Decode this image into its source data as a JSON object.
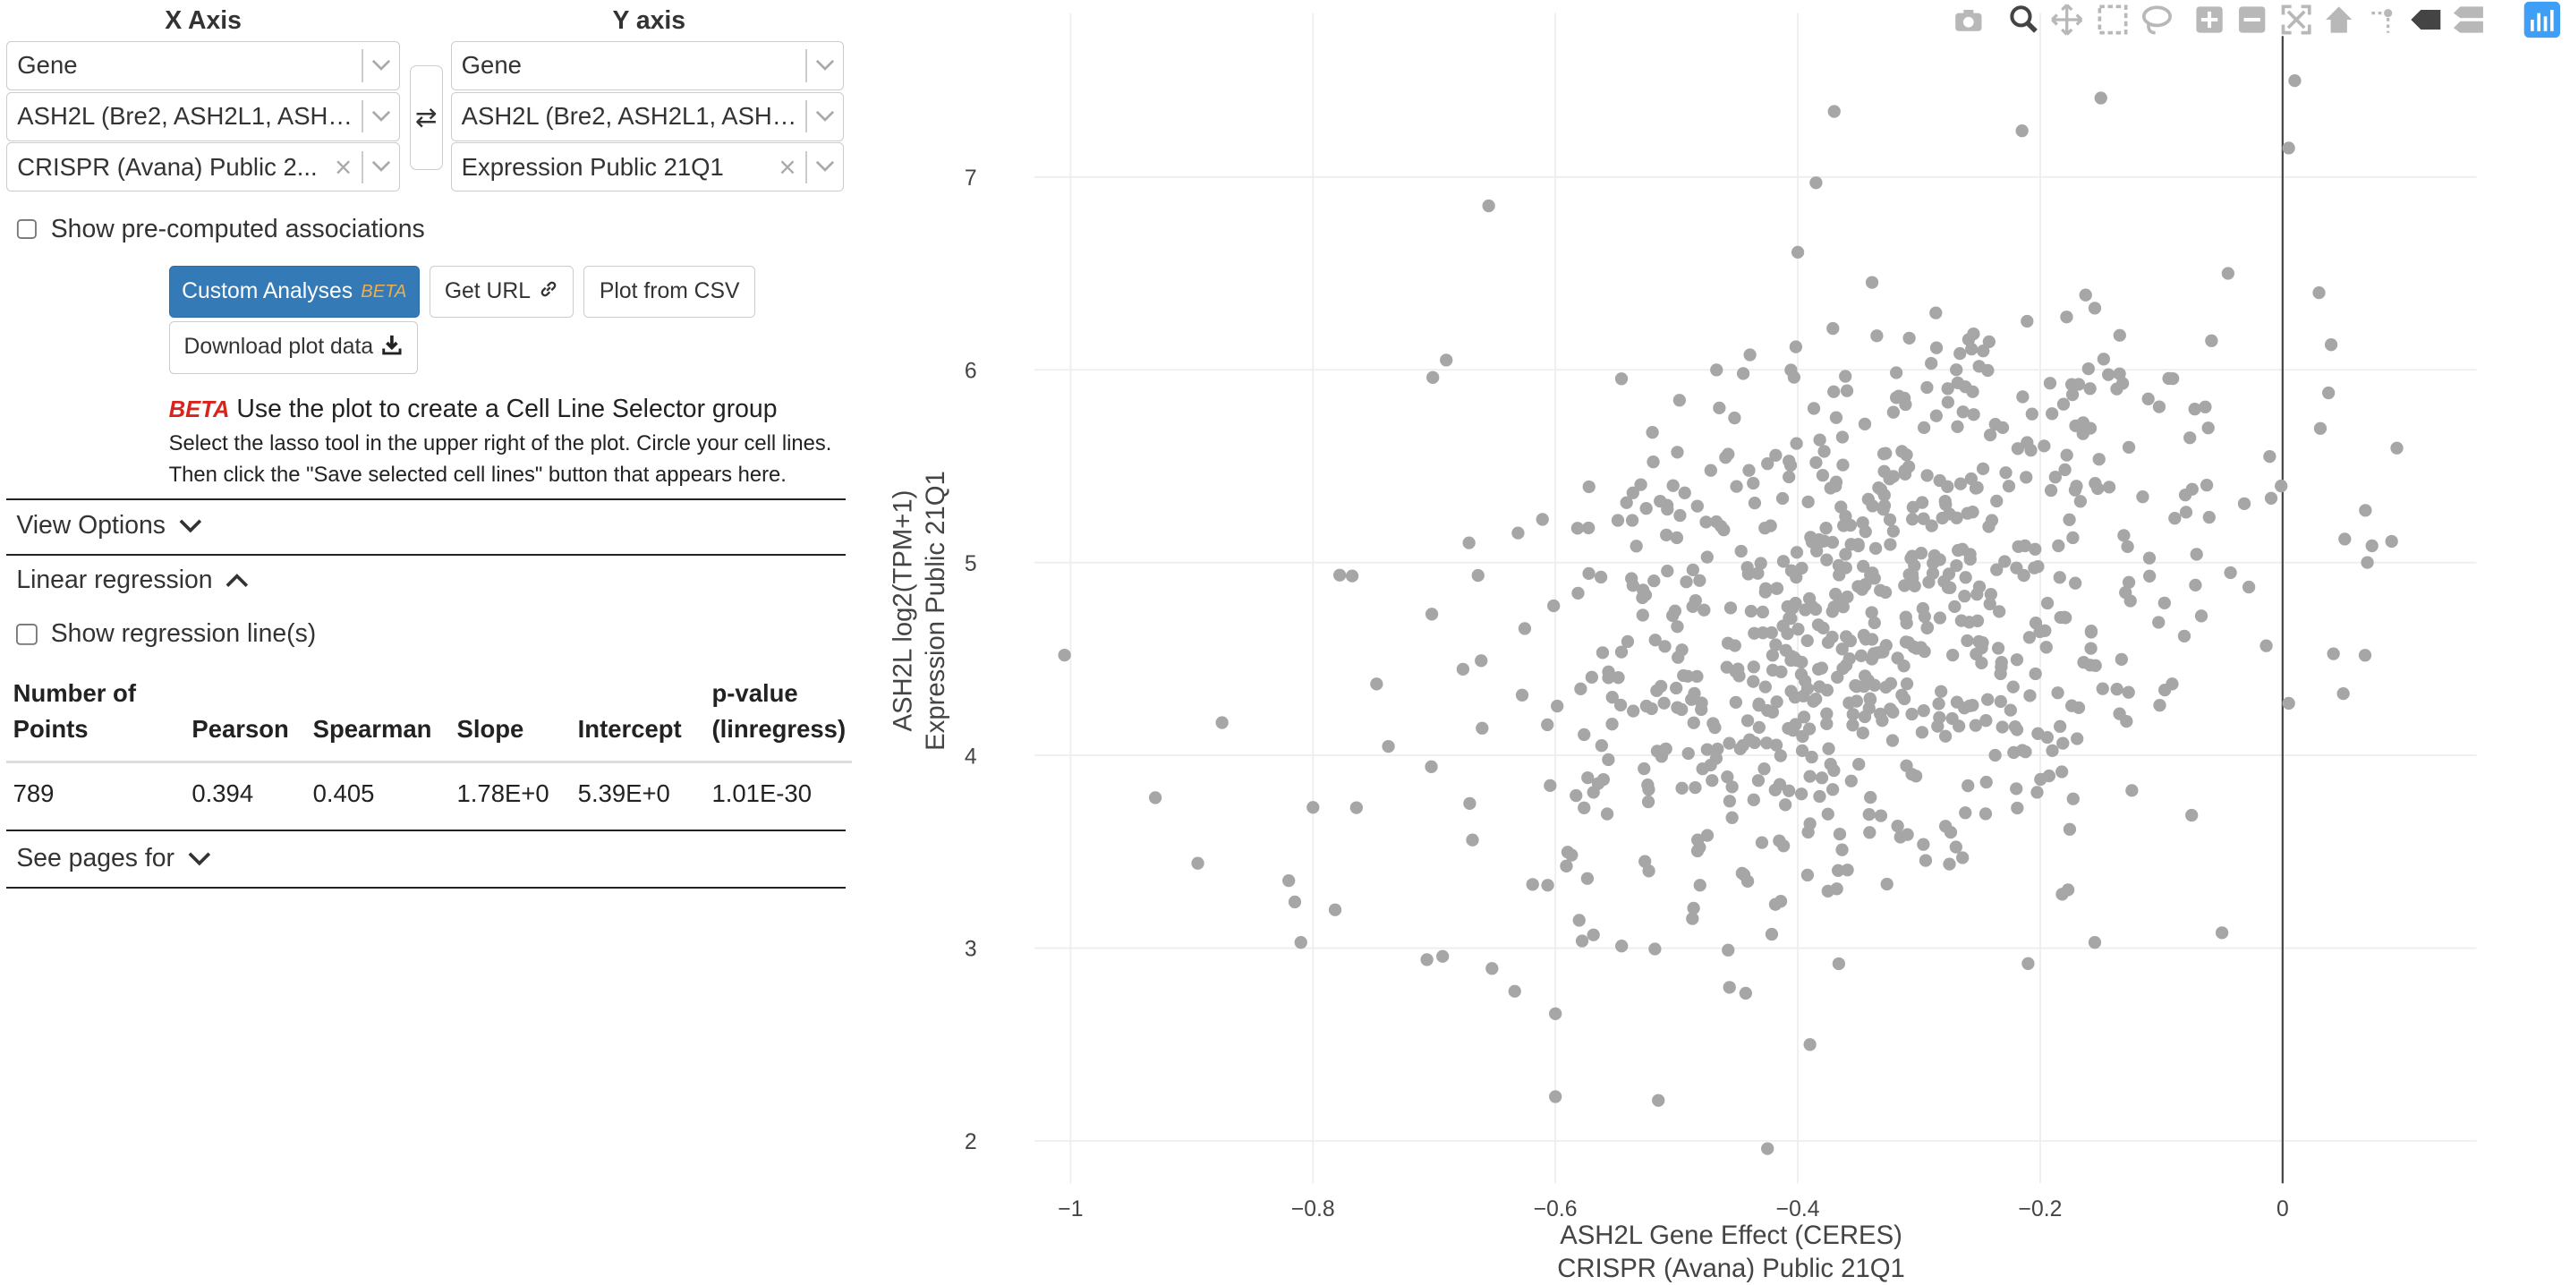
{
  "x_axis": {
    "title": "X Axis",
    "type_select": "Gene",
    "gene_select": "ASH2L (Bre2, ASH2L1, ASH2...",
    "dataset_select": "CRISPR (Avana) Public 2..."
  },
  "y_axis": {
    "title": "Y axis",
    "type_select": "Gene",
    "gene_select": "ASH2L (Bre2, ASH2L1, ASH2...",
    "dataset_select": "Expression Public 21Q1"
  },
  "swap_icon": "⇄",
  "options": {
    "precomputed_label": "Show pre-computed associations",
    "precomputed_checked": false
  },
  "buttons": {
    "custom_analyses": "Custom Analyses",
    "custom_analyses_badge": "BETA",
    "get_url": "Get URL",
    "plot_from_csv": "Plot from CSV",
    "download_plot_data": "Download plot data"
  },
  "selector_info": {
    "badge": "BETA",
    "heading": "Use the plot to create a Cell Line Selector group",
    "line1": "Select the lasso tool in the upper right of the plot. Circle your cell lines.",
    "line2": "Then click the \"Save selected cell lines\" button that appears here."
  },
  "sections": {
    "view_options": "View Options",
    "linear_regression": "Linear regression",
    "show_regression_label": "Show regression line(s)",
    "see_pages_for": "See pages for"
  },
  "stats_table": {
    "headers": {
      "points_line1": "Number of",
      "points_line2": "Points",
      "pearson": "Pearson",
      "spearman": "Spearman",
      "slope": "Slope",
      "intercept": "Intercept",
      "pvalue_line1": "p-value",
      "pvalue_line2": "(linregress)"
    },
    "row": {
      "points": "789",
      "pearson": "0.394",
      "spearman": "0.405",
      "slope": "1.78E+0",
      "intercept": "5.39E+0",
      "pvalue": "1.01E-30"
    }
  },
  "modebar_icons": [
    "camera-icon",
    "zoom-icon",
    "pan-icon",
    "box-select-icon",
    "lasso-icon",
    "zoom-in-icon",
    "zoom-out-icon",
    "autoscale-icon",
    "reset-axes-icon",
    "spike-lines-icon",
    "hover-closest-icon",
    "hover-compare-icon",
    "plotly-logo-icon"
  ],
  "colors": {
    "primary_button": "#337ab7",
    "beta_badge": "#f0ad4e",
    "beta_red": "#d9231d",
    "point": "#a6a6a6"
  },
  "chart_data": {
    "type": "scatter",
    "xlabel_line1": "ASH2L Gene Effect (CERES)",
    "xlabel_line2": "CRISPR (Avana) Public 21Q1",
    "ylabel_line1": "ASH2L log2(TPM+1)",
    "ylabel_line2": "Expression Public 21Q1",
    "xlim": [
      -1.03,
      0.16
    ],
    "ylim": [
      1.78,
      7.85
    ],
    "xticks": [
      -1,
      -0.8,
      -0.6,
      -0.4,
      -0.2,
      0
    ],
    "xtick_labels": [
      "−1",
      "−0.8",
      "−0.6",
      "−0.4",
      "−0.2",
      "0"
    ],
    "yticks": [
      2,
      3,
      4,
      5,
      6,
      7
    ],
    "ytick_labels": [
      "2",
      "3",
      "4",
      "5",
      "6",
      "7"
    ],
    "grid": true,
    "zero_line_x": 0,
    "n_points": 789,
    "x_mean": -0.35,
    "x_sd": 0.14,
    "y_mean": 4.7,
    "y_sd": 0.8,
    "pearson": 0.394,
    "outlier_points": [
      {
        "x": -1.005,
        "y": 4.52
      },
      {
        "x": -0.93,
        "y": 3.78
      },
      {
        "x": -0.895,
        "y": 3.44
      },
      {
        "x": -0.875,
        "y": 4.17
      },
      {
        "x": -0.82,
        "y": 3.35
      },
      {
        "x": -0.815,
        "y": 3.24
      },
      {
        "x": -0.8,
        "y": 3.73
      },
      {
        "x": -0.81,
        "y": 3.03
      },
      {
        "x": -0.655,
        "y": 6.85
      },
      {
        "x": -0.69,
        "y": 6.05
      },
      {
        "x": -0.6,
        "y": 2.66
      },
      {
        "x": -0.6,
        "y": 2.23
      },
      {
        "x": -0.515,
        "y": 2.21
      },
      {
        "x": -0.425,
        "y": 1.96
      },
      {
        "x": -0.39,
        "y": 2.5
      },
      {
        "x": -0.4,
        "y": 6.61
      },
      {
        "x": -0.37,
        "y": 7.34
      },
      {
        "x": -0.385,
        "y": 6.97
      },
      {
        "x": -0.215,
        "y": 7.24
      },
      {
        "x": -0.15,
        "y": 7.41
      },
      {
        "x": -0.21,
        "y": 2.92
      },
      {
        "x": -0.155,
        "y": 3.03
      },
      {
        "x": -0.05,
        "y": 3.08
      },
      {
        "x": 0.01,
        "y": 7.5
      },
      {
        "x": 0.005,
        "y": 7.15
      },
      {
        "x": 0.03,
        "y": 6.4
      },
      {
        "x": 0.04,
        "y": 6.13
      },
      {
        "x": 0.07,
        "y": 5.0
      },
      {
        "x": 0.09,
        "y": 5.11
      },
      {
        "x": 0.05,
        "y": 4.32
      },
      {
        "x": 0.005,
        "y": 4.27
      },
      {
        "x": -0.045,
        "y": 6.5
      }
    ]
  }
}
